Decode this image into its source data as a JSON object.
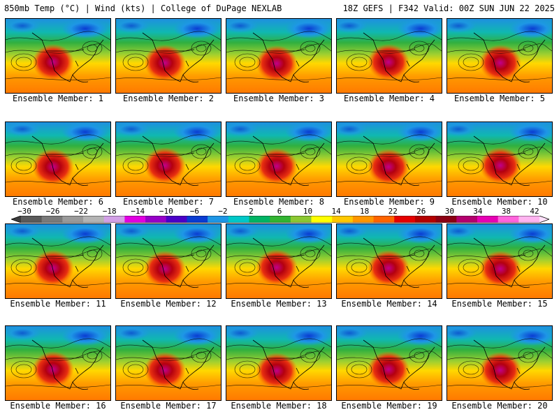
{
  "header": {
    "left": "850mb Temp (°C) | Wind (kts) | College of DuPage NEXLAB",
    "right": "18Z GEFS | F342 Valid: 00Z SUN JUN 22 2025"
  },
  "members": [
    "Ensemble Member: 1",
    "Ensemble Member: 2",
    "Ensemble Member: 3",
    "Ensemble Member: 4",
    "Ensemble Member: 5",
    "Ensemble Member: 6",
    "Ensemble Member: 7",
    "Ensemble Member: 8",
    "Ensemble Member: 9",
    "Ensemble Member: 10",
    "Ensemble Member: 11",
    "Ensemble Member: 12",
    "Ensemble Member: 13",
    "Ensemble Member: 14",
    "Ensemble Member: 15",
    "Ensemble Member: 16",
    "Ensemble Member: 17",
    "Ensemble Member: 18",
    "Ensemble Member: 19",
    "Ensemble Member: 20"
  ],
  "colorbar": {
    "ticks": [
      "−30",
      "−26",
      "−22",
      "−18",
      "−14",
      "−10",
      "−6",
      "−2",
      "2",
      "6",
      "10",
      "14",
      "18",
      "22",
      "26",
      "30",
      "34",
      "38",
      "42"
    ],
    "colors": [
      "#5a5a5a",
      "#7a7a7a",
      "#9a9a9a",
      "#b4b4b4",
      "#d2a0e6",
      "#e100e1",
      "#9600c8",
      "#4b00c8",
      "#0a3cd2",
      "#1e96e6",
      "#00c8c8",
      "#00b464",
      "#32b432",
      "#8cc832",
      "#ffff00",
      "#ffc800",
      "#ff9600",
      "#ff6400",
      "#e60000",
      "#b40000",
      "#8c0014",
      "#b4006e",
      "#e600b4",
      "#ff64dc",
      "#ffb4f0"
    ]
  }
}
